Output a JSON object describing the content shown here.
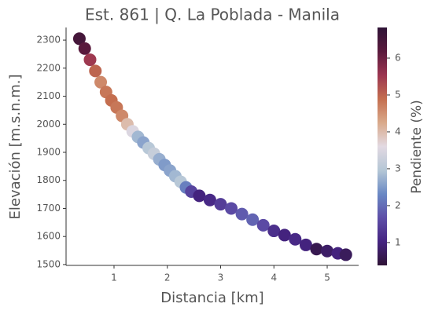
{
  "chart_data": {
    "type": "scatter",
    "title": "Est. 861 | Q. La Poblada - Manila",
    "x_label": "Distancia [km]",
    "y_label": "Elevación [m.s.n.m.]",
    "colorbar_label": "Pendiente (%)",
    "x": [
      0.35,
      0.45,
      0.55,
      0.65,
      0.75,
      0.85,
      0.95,
      1.05,
      1.15,
      1.25,
      1.35,
      1.45,
      1.55,
      1.65,
      1.75,
      1.85,
      1.95,
      2.05,
      2.15,
      2.25,
      2.35,
      2.45,
      2.6,
      2.8,
      3.0,
      3.2,
      3.4,
      3.6,
      3.8,
      4.0,
      4.2,
      4.4,
      4.6,
      4.8,
      5.0,
      5.2,
      5.35
    ],
    "values": [
      2305,
      2270,
      2230,
      2190,
      2150,
      2115,
      2085,
      2060,
      2030,
      2000,
      1975,
      1955,
      1935,
      1915,
      1895,
      1875,
      1855,
      1835,
      1815,
      1795,
      1775,
      1760,
      1745,
      1730,
      1715,
      1700,
      1680,
      1660,
      1640,
      1620,
      1605,
      1590,
      1570,
      1555,
      1548,
      1540,
      1535
    ],
    "color_values": [
      6.5,
      6.2,
      5.5,
      5.0,
      4.6,
      4.8,
      4.9,
      4.8,
      4.6,
      4.0,
      3.5,
      2.8,
      2.6,
      3.0,
      3.2,
      2.7,
      2.5,
      2.6,
      2.8,
      3.0,
      2.2,
      1.5,
      1.0,
      1.1,
      1.4,
      1.6,
      1.8,
      1.9,
      1.6,
      1.2,
      1.0,
      1.1,
      1.0,
      0.6,
      0.8,
      1.0,
      0.7
    ],
    "colormap": [
      "#2f1436",
      "#452481",
      "#5e4fa8",
      "#6a89c4",
      "#b5c7d6",
      "#e2d9e2",
      "#d9a98a",
      "#c46e4f",
      "#9b3550",
      "#5a1a3d",
      "#2f1436"
    ],
    "xlim": [
      0.1,
      5.59
    ],
    "ylim": [
      1497,
      2345
    ],
    "clim": [
      0.38,
      6.83
    ],
    "xticks": [
      1,
      2,
      3,
      4,
      5
    ],
    "yticks": [
      1500,
      1600,
      1700,
      1800,
      1900,
      2000,
      2100,
      2200,
      2300
    ],
    "cticks": [
      1,
      2,
      3,
      4,
      5,
      6
    ]
  }
}
